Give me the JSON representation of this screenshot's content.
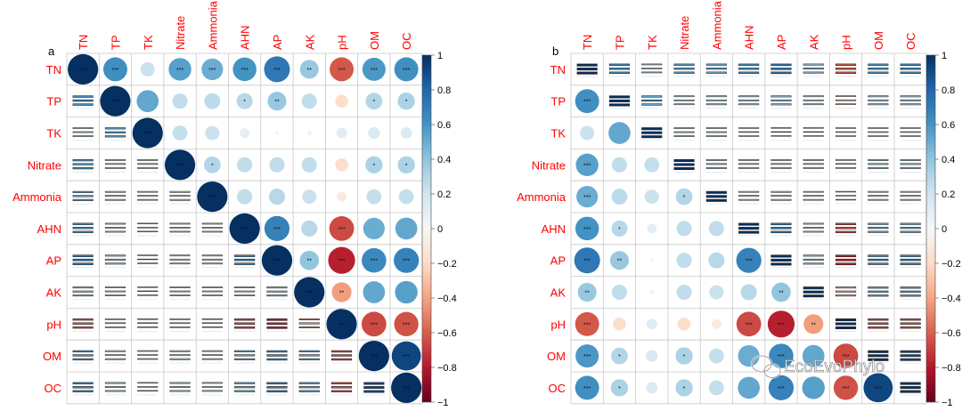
{
  "panels": [
    {
      "label": "a"
    },
    {
      "label": "b"
    }
  ],
  "watermark": {
    "text": "EcoEvoPhylo",
    "icon": "wechat-icon"
  },
  "colors": {
    "text_red": "#ff0000",
    "grid": "#c8c8c8",
    "neg_strong": "#67001f",
    "pos_strong": "#053061",
    "zero": "#f7f7f7"
  },
  "chart_data": [
    {
      "type": "heatmap",
      "title": "",
      "panel_label": "a",
      "variables": [
        "TN",
        "TP",
        "TK",
        "Nitrate",
        "Ammonia",
        "AHN",
        "AP",
        "AK",
        "pH",
        "OM",
        "OC"
      ],
      "upper_method": "circle",
      "lower_method": "lines",
      "colorbar": {
        "min": -1,
        "max": 1,
        "ticks": [
          "1",
          "0.8",
          "0.6",
          "0.4",
          "0.2",
          "0",
          "−0.2",
          "−0.4",
          "−0.6",
          "−0.8",
          "−1"
        ]
      },
      "correlations": [
        [
          1.0,
          0.62,
          0.22,
          0.55,
          0.5,
          0.6,
          0.72,
          0.38,
          -0.62,
          0.58,
          0.62
        ],
        [
          0.62,
          1.0,
          0.52,
          0.25,
          0.27,
          0.28,
          0.38,
          0.25,
          -0.18,
          0.3,
          0.32
        ],
        [
          0.22,
          0.52,
          1.0,
          0.24,
          0.22,
          0.1,
          0.02,
          0.03,
          0.12,
          0.15,
          0.14
        ],
        [
          0.55,
          0.25,
          0.24,
          1.0,
          0.3,
          0.25,
          0.25,
          0.25,
          -0.18,
          0.32,
          0.32
        ],
        [
          0.5,
          0.27,
          0.22,
          0.3,
          1.0,
          0.25,
          0.28,
          0.22,
          -0.1,
          0.24,
          0.24
        ],
        [
          0.6,
          0.28,
          0.1,
          0.25,
          0.25,
          1.0,
          0.68,
          0.28,
          -0.66,
          0.5,
          0.52
        ],
        [
          0.72,
          0.38,
          0.02,
          0.25,
          0.28,
          0.68,
          1.0,
          0.4,
          -0.78,
          0.65,
          0.68
        ],
        [
          0.38,
          0.25,
          0.03,
          0.25,
          0.22,
          0.28,
          0.4,
          1.0,
          -0.42,
          0.52,
          0.55
        ],
        [
          -0.62,
          -0.18,
          0.12,
          -0.18,
          -0.1,
          -0.66,
          -0.78,
          -0.42,
          1.0,
          -0.66,
          -0.64
        ],
        [
          0.58,
          0.3,
          0.15,
          0.32,
          0.24,
          0.5,
          0.65,
          0.52,
          -0.66,
          1.0,
          0.92
        ],
        [
          0.62,
          0.32,
          0.14,
          0.32,
          0.24,
          0.52,
          0.68,
          0.55,
          -0.64,
          0.92,
          1.0
        ]
      ],
      "significance": [
        [
          "***",
          "***",
          "",
          "***",
          "***",
          "***",
          "***",
          "**",
          "***",
          "***",
          "***"
        ],
        [
          "***",
          "***",
          "",
          "",
          "",
          "*",
          "**",
          "",
          "",
          "*",
          "*"
        ],
        [
          "",
          "",
          "***",
          "",
          "",
          "",
          "",
          "",
          "",
          "",
          ""
        ],
        [
          "***",
          "",
          "",
          "***",
          "*",
          "",
          "",
          "",
          "",
          "*",
          "*"
        ],
        [
          "***",
          "",
          "",
          "*",
          "***",
          "",
          "",
          "",
          "",
          "",
          ""
        ],
        [
          "***",
          "*",
          "",
          "",
          "",
          "***",
          "***",
          "",
          "***",
          "",
          ""
        ],
        [
          "***",
          "**",
          "",
          "",
          "",
          "***",
          "***",
          "**",
          "***",
          "***",
          "***"
        ],
        [
          "**",
          "",
          "",
          "",
          "",
          "",
          "**",
          "***",
          "**",
          "",
          ""
        ],
        [
          "***",
          "",
          "",
          "",
          "",
          "***",
          "***",
          "**",
          "***",
          "***",
          "***"
        ],
        [
          "***",
          "*",
          "",
          "*",
          "",
          "",
          "***",
          "",
          "***",
          "***",
          "***"
        ],
        [
          "***",
          "*",
          "",
          "*",
          "",
          "",
          "***",
          "",
          "***",
          "***",
          "***"
        ]
      ]
    },
    {
      "type": "heatmap",
      "title": "",
      "panel_label": "b",
      "variables": [
        "TN",
        "TP",
        "TK",
        "Nitrate",
        "Ammonia",
        "AHN",
        "AP",
        "AK",
        "pH",
        "OM",
        "OC"
      ],
      "upper_method": "lines",
      "lower_method": "circle",
      "colorbar": {
        "min": -1,
        "max": 1,
        "ticks": [
          "1",
          "0.8",
          "0.6",
          "0.4",
          "0.2",
          "0",
          "−0.2",
          "−0.4",
          "−0.6",
          "−0.8",
          "−1"
        ]
      },
      "correlations": [
        [
          1.0,
          0.62,
          0.22,
          0.55,
          0.5,
          0.6,
          0.72,
          0.38,
          -0.62,
          0.58,
          0.62
        ],
        [
          0.62,
          1.0,
          0.52,
          0.25,
          0.27,
          0.28,
          0.38,
          0.25,
          -0.18,
          0.3,
          0.32
        ],
        [
          0.22,
          0.52,
          1.0,
          0.24,
          0.22,
          0.1,
          0.02,
          0.03,
          0.12,
          0.15,
          0.14
        ],
        [
          0.55,
          0.25,
          0.24,
          1.0,
          0.3,
          0.25,
          0.25,
          0.25,
          -0.18,
          0.32,
          0.32
        ],
        [
          0.5,
          0.27,
          0.22,
          0.3,
          1.0,
          0.25,
          0.28,
          0.22,
          -0.1,
          0.24,
          0.24
        ],
        [
          0.6,
          0.28,
          0.1,
          0.25,
          0.25,
          1.0,
          0.68,
          0.28,
          -0.66,
          0.5,
          0.52
        ],
        [
          0.72,
          0.38,
          0.02,
          0.25,
          0.28,
          0.68,
          1.0,
          0.4,
          -0.78,
          0.65,
          0.68
        ],
        [
          0.38,
          0.25,
          0.03,
          0.25,
          0.22,
          0.28,
          0.4,
          1.0,
          -0.42,
          0.52,
          0.55
        ],
        [
          -0.62,
          -0.18,
          0.12,
          -0.18,
          -0.1,
          -0.66,
          -0.78,
          -0.42,
          1.0,
          -0.66,
          -0.64
        ],
        [
          0.58,
          0.3,
          0.15,
          0.32,
          0.24,
          0.5,
          0.65,
          0.52,
          -0.66,
          1.0,
          0.92
        ],
        [
          0.62,
          0.32,
          0.14,
          0.32,
          0.24,
          0.52,
          0.68,
          0.55,
          -0.64,
          0.92,
          1.0
        ]
      ],
      "significance": [
        [
          "***",
          "***",
          "",
          "***",
          "***",
          "***",
          "***",
          "**",
          "***",
          "***",
          "***"
        ],
        [
          "***",
          "***",
          "",
          "",
          "",
          "*",
          "**",
          "",
          "",
          "*",
          "*"
        ],
        [
          "",
          "",
          "***",
          "",
          "",
          "",
          "",
          "",
          "",
          "",
          ""
        ],
        [
          "***",
          "",
          "",
          "***",
          "*",
          "",
          "",
          "",
          "",
          "*",
          "*"
        ],
        [
          "***",
          "",
          "",
          "*",
          "***",
          "",
          "",
          "",
          "",
          "",
          ""
        ],
        [
          "***",
          "*",
          "",
          "",
          "",
          "***",
          "***",
          "",
          "***",
          "",
          ""
        ],
        [
          "***",
          "**",
          "",
          "",
          "",
          "***",
          "***",
          "**",
          "***",
          "***",
          "***"
        ],
        [
          "**",
          "",
          "",
          "",
          "",
          "",
          "**",
          "***",
          "**",
          "",
          ""
        ],
        [
          "***",
          "",
          "",
          "",
          "",
          "***",
          "***",
          "**",
          "***",
          "***",
          "***"
        ],
        [
          "***",
          "*",
          "",
          "*",
          "",
          "",
          "***",
          "",
          "***",
          "***",
          "***"
        ],
        [
          "***",
          "*",
          "",
          "*",
          "",
          "",
          "***",
          "",
          "***",
          "***",
          "***"
        ]
      ]
    }
  ]
}
